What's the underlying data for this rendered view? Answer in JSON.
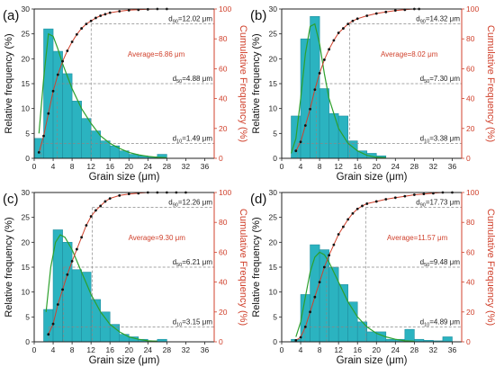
{
  "chart_data": [
    {
      "type": "bar",
      "panel_label": "(a)",
      "xlabel": "Grain size (μm)",
      "ylabel_left": "Relative frequency (%)",
      "ylabel_right": "Cumulative Frequency (%)",
      "xlim": [
        0,
        38
      ],
      "ylim_left": [
        0,
        30
      ],
      "ylim_right": [
        0,
        100
      ],
      "xticks": [
        "0",
        "4",
        "8",
        "12",
        "16",
        "20",
        "24",
        "28",
        "32",
        "36"
      ],
      "yticks_left": [
        "0",
        "5",
        "10",
        "15",
        "20",
        "25",
        "30"
      ],
      "yticks_right": [
        "0",
        "20",
        "40",
        "60",
        "80",
        "100"
      ],
      "bin_width": 2,
      "bins": [
        {
          "x": 1,
          "value": 4.0
        },
        {
          "x": 3,
          "value": 26.0
        },
        {
          "x": 5,
          "value": 21.5
        },
        {
          "x": 7,
          "value": 17.0
        },
        {
          "x": 9,
          "value": 11.5
        },
        {
          "x": 11,
          "value": 8.0
        },
        {
          "x": 13,
          "value": 5.5
        },
        {
          "x": 15,
          "value": 3.5
        },
        {
          "x": 17,
          "value": 2.5
        },
        {
          "x": 19,
          "value": 1.5
        },
        {
          "x": 21,
          "value": 0.8
        },
        {
          "x": 23,
          "value": 0.5
        },
        {
          "x": 25,
          "value": 0.3
        },
        {
          "x": 27,
          "value": 0.8
        }
      ],
      "fit_curve": [
        [
          1,
          5
        ],
        [
          2,
          16
        ],
        [
          3,
          25
        ],
        [
          4,
          24.5
        ],
        [
          5,
          22
        ],
        [
          6,
          19
        ],
        [
          7,
          16.5
        ],
        [
          8,
          14
        ],
        [
          10,
          10
        ],
        [
          12,
          7
        ],
        [
          14,
          4.5
        ],
        [
          16,
          3
        ],
        [
          18,
          2
        ],
        [
          20,
          1.2
        ],
        [
          22,
          0.7
        ],
        [
          24,
          0.4
        ],
        [
          26,
          0.2
        ],
        [
          28,
          0.1
        ]
      ],
      "cumulative": [
        [
          1,
          4
        ],
        [
          2,
          15
        ],
        [
          3,
          30
        ],
        [
          4,
          45
        ],
        [
          5,
          56
        ],
        [
          6,
          65
        ],
        [
          7,
          72
        ],
        [
          8,
          78
        ],
        [
          9,
          83
        ],
        [
          10,
          87
        ],
        [
          11,
          90
        ],
        [
          12,
          92
        ],
        [
          13,
          94
        ],
        [
          14,
          95.5
        ],
        [
          15,
          96.5
        ],
        [
          16,
          97.5
        ],
        [
          18,
          98.5
        ],
        [
          20,
          99.2
        ],
        [
          22,
          99.5
        ],
        [
          24,
          99.8
        ],
        [
          26,
          100
        ],
        [
          28,
          100
        ]
      ],
      "d90": 12.02,
      "d50": 4.88,
      "d10": 1.49,
      "d90_label": "d",
      "d90_sub": "90",
      "d90_value": "=12.02 μm",
      "d50_label": "d",
      "d50_sub": "50",
      "d50_value": "=4.88 μm",
      "d10_label": "d",
      "d10_sub": "10",
      "d10_value": "=1.49 μm",
      "average_text": "Average=6.86 μm"
    },
    {
      "type": "bar",
      "panel_label": "(b)",
      "xlabel": "Grain size (μm)",
      "ylabel_left": "Relative frequency (%)",
      "ylabel_right": "Cumulative Frequency (%)",
      "xlim": [
        0,
        38
      ],
      "ylim_left": [
        0,
        30
      ],
      "ylim_right": [
        0,
        100
      ],
      "xticks": [
        "0",
        "4",
        "8",
        "12",
        "16",
        "20",
        "24",
        "28",
        "32",
        "36"
      ],
      "yticks_left": [
        "0",
        "5",
        "10",
        "15",
        "20",
        "25",
        "30"
      ],
      "yticks_right": [
        "0",
        "20",
        "40",
        "60",
        "80",
        "100"
      ],
      "bin_width": 2,
      "bins": [
        {
          "x": 3,
          "value": 8.5
        },
        {
          "x": 5,
          "value": 24.0
        },
        {
          "x": 7,
          "value": 28.5
        },
        {
          "x": 9,
          "value": 14.0
        },
        {
          "x": 11,
          "value": 9.0
        },
        {
          "x": 13,
          "value": 8.5
        },
        {
          "x": 15,
          "value": 3.5
        },
        {
          "x": 17,
          "value": 1.5
        },
        {
          "x": 19,
          "value": 1.0
        },
        {
          "x": 21,
          "value": 0.5
        }
      ],
      "fit_curve": [
        [
          2,
          1
        ],
        [
          3,
          4
        ],
        [
          4,
          12
        ],
        [
          5,
          21
        ],
        [
          6,
          26.5
        ],
        [
          7,
          27
        ],
        [
          8,
          23
        ],
        [
          9,
          17
        ],
        [
          10,
          12
        ],
        [
          12,
          6
        ],
        [
          14,
          3
        ],
        [
          16,
          1.5
        ],
        [
          18,
          0.6
        ],
        [
          20,
          0.2
        ],
        [
          22,
          0.1
        ]
      ],
      "cumulative": [
        [
          3,
          5
        ],
        [
          4,
          11
        ],
        [
          5,
          22
        ],
        [
          6,
          33
        ],
        [
          7,
          46
        ],
        [
          8,
          57
        ],
        [
          9,
          66
        ],
        [
          10,
          73
        ],
        [
          11,
          79
        ],
        [
          12,
          84
        ],
        [
          13,
          87
        ],
        [
          14,
          90
        ],
        [
          15,
          92
        ],
        [
          16,
          93.5
        ],
        [
          18,
          95.5
        ],
        [
          20,
          97
        ],
        [
          22,
          98
        ],
        [
          24,
          99
        ],
        [
          26,
          99.5
        ],
        [
          28,
          100
        ],
        [
          29,
          100
        ]
      ],
      "d90": 14.32,
      "d50": 7.3,
      "d10": 3.38,
      "d90_label": "d",
      "d90_sub": "90",
      "d90_value": "=14.32 μm",
      "d50_label": "d",
      "d50_sub": "50",
      "d50_value": "=7.30 μm",
      "d10_label": "d",
      "d10_sub": "10",
      "d10_value": "=3.38 μm",
      "average_text": "Average=8.02 μm"
    },
    {
      "type": "bar",
      "panel_label": "(c)",
      "xlabel": "Grain size (μm)",
      "ylabel_left": "Relative frequency (%)",
      "ylabel_right": "Cumulative Frequency (%)",
      "xlim": [
        0,
        38
      ],
      "ylim_left": [
        0,
        30
      ],
      "ylim_right": [
        0,
        100
      ],
      "xticks": [
        "0",
        "4",
        "8",
        "12",
        "16",
        "20",
        "24",
        "28",
        "32",
        "36"
      ],
      "yticks_left": [
        "0",
        "5",
        "10",
        "15",
        "20",
        "25",
        "30"
      ],
      "yticks_right": [
        "0",
        "20",
        "40",
        "60",
        "80",
        "100"
      ],
      "bin_width": 2,
      "bins": [
        {
          "x": 3,
          "value": 6.5
        },
        {
          "x": 5,
          "value": 22.5
        },
        {
          "x": 7,
          "value": 20.0
        },
        {
          "x": 9,
          "value": 14.5
        },
        {
          "x": 11,
          "value": 14.0
        },
        {
          "x": 13,
          "value": 8.5
        },
        {
          "x": 15,
          "value": 6.0
        },
        {
          "x": 17,
          "value": 3.5
        },
        {
          "x": 19,
          "value": 1.5
        },
        {
          "x": 21,
          "value": 1.0
        },
        {
          "x": 23,
          "value": 0.5
        },
        {
          "x": 25,
          "value": 0.2
        },
        {
          "x": 27,
          "value": 0.5
        }
      ],
      "fit_curve": [
        [
          2.5,
          6
        ],
        [
          3.5,
          15
        ],
        [
          4.5,
          20
        ],
        [
          5.5,
          21.5
        ],
        [
          6.5,
          21
        ],
        [
          8,
          18.5
        ],
        [
          10,
          14
        ],
        [
          12,
          9.5
        ],
        [
          14,
          6
        ],
        [
          16,
          3.5
        ],
        [
          18,
          2
        ],
        [
          20,
          1
        ],
        [
          22,
          0.5
        ],
        [
          24,
          0.2
        ],
        [
          26,
          0.1
        ]
      ],
      "cumulative": [
        [
          3,
          5
        ],
        [
          4,
          12
        ],
        [
          5,
          25
        ],
        [
          6,
          35
        ],
        [
          7,
          45
        ],
        [
          8,
          54
        ],
        [
          9,
          62
        ],
        [
          10,
          70
        ],
        [
          11,
          78
        ],
        [
          12,
          84
        ],
        [
          13,
          88
        ],
        [
          14,
          91
        ],
        [
          15,
          94
        ],
        [
          16,
          96
        ],
        [
          18,
          98
        ],
        [
          20,
          99
        ],
        [
          22,
          99.5
        ],
        [
          24,
          100
        ],
        [
          26,
          100
        ],
        [
          28,
          100
        ],
        [
          30,
          100
        ],
        [
          32,
          100
        ]
      ],
      "d90": 12.26,
      "d50": 6.21,
      "d10": 3.15,
      "d90_label": "d",
      "d90_sub": "90",
      "d90_value": "=12.26 μm",
      "d50_label": "d",
      "d50_sub": "50",
      "d50_value": "=6.21 μm",
      "d10_label": "d",
      "d10_sub": "10",
      "d10_value": "=3.15 μm",
      "average_text": "Average=9.30 μm"
    },
    {
      "type": "bar",
      "panel_label": "(d)",
      "xlabel": "Grain size (μm)",
      "ylabel_left": "Relative frequency (%)",
      "ylabel_right": "Cumulative Frequency (%)",
      "xlim": [
        0,
        38
      ],
      "ylim_left": [
        0,
        30
      ],
      "ylim_right": [
        0,
        100
      ],
      "xticks": [
        "0",
        "4",
        "8",
        "12",
        "16",
        "20",
        "24",
        "28",
        "32",
        "36"
      ],
      "yticks_left": [
        "0",
        "5",
        "10",
        "15",
        "20",
        "25",
        "30"
      ],
      "yticks_right": [
        "0",
        "20",
        "40",
        "60",
        "80",
        "100"
      ],
      "bin_width": 2,
      "bins": [
        {
          "x": 3,
          "value": 0.5
        },
        {
          "x": 5,
          "value": 9.5
        },
        {
          "x": 7,
          "value": 19.5
        },
        {
          "x": 9,
          "value": 18.5
        },
        {
          "x": 11,
          "value": 15.0
        },
        {
          "x": 13,
          "value": 11.5
        },
        {
          "x": 15,
          "value": 8.0
        },
        {
          "x": 17,
          "value": 4.0
        },
        {
          "x": 19,
          "value": 2.0
        },
        {
          "x": 21,
          "value": 2.0
        },
        {
          "x": 23,
          "value": 0.5
        },
        {
          "x": 25,
          "value": 0.5
        },
        {
          "x": 27,
          "value": 2.5
        },
        {
          "x": 29,
          "value": 0.5
        },
        {
          "x": 31,
          "value": 0.3
        },
        {
          "x": 33,
          "value": 0.2
        },
        {
          "x": 35,
          "value": 1.0
        }
      ],
      "fit_curve": [
        [
          3,
          1
        ],
        [
          4,
          4
        ],
        [
          5,
          9
        ],
        [
          6,
          14
        ],
        [
          7,
          17
        ],
        [
          8,
          18
        ],
        [
          9,
          17.5
        ],
        [
          10,
          16
        ],
        [
          12,
          12
        ],
        [
          14,
          8
        ],
        [
          16,
          5
        ],
        [
          18,
          3
        ],
        [
          20,
          1.7
        ],
        [
          22,
          1
        ],
        [
          24,
          0.5
        ],
        [
          26,
          0.2
        ],
        [
          28,
          0.1
        ]
      ],
      "cumulative": [
        [
          3,
          1
        ],
        [
          4,
          3
        ],
        [
          5,
          10
        ],
        [
          6,
          20
        ],
        [
          7,
          30
        ],
        [
          8,
          40
        ],
        [
          9,
          50
        ],
        [
          10,
          58
        ],
        [
          11,
          65
        ],
        [
          12,
          72
        ],
        [
          13,
          77
        ],
        [
          14,
          82
        ],
        [
          15,
          86
        ],
        [
          16,
          89
        ],
        [
          17,
          91
        ],
        [
          18,
          92.5
        ],
        [
          20,
          94
        ],
        [
          22,
          95.5
        ],
        [
          24,
          96.5
        ],
        [
          26,
          97.5
        ],
        [
          28,
          98.5
        ],
        [
          30,
          99
        ],
        [
          32,
          99.5
        ],
        [
          34,
          100
        ],
        [
          36,
          100
        ]
      ],
      "d90": 17.73,
      "d50": 9.48,
      "d10": 4.89,
      "d90_label": "d",
      "d90_sub": "90",
      "d90_value": "=17.73 μm",
      "d50_label": "d",
      "d50_sub": "50",
      "d50_value": "=9.48 μm",
      "d10_label": "d",
      "d10_sub": "10",
      "d10_value": "=4.89 μm",
      "average_text": "Average=11.57 μm"
    }
  ],
  "colors": {
    "bar_fill": "#2bb3c0",
    "bar_stroke": "#1f8fa0",
    "fit_curve": "#2ca02c",
    "cumulative_line": "#d0412c",
    "cumulative_marker": "#111111",
    "guide_line": "#888888",
    "axis": "#222222",
    "right_axis": "#d0412c",
    "average_text": "#d0412c"
  }
}
